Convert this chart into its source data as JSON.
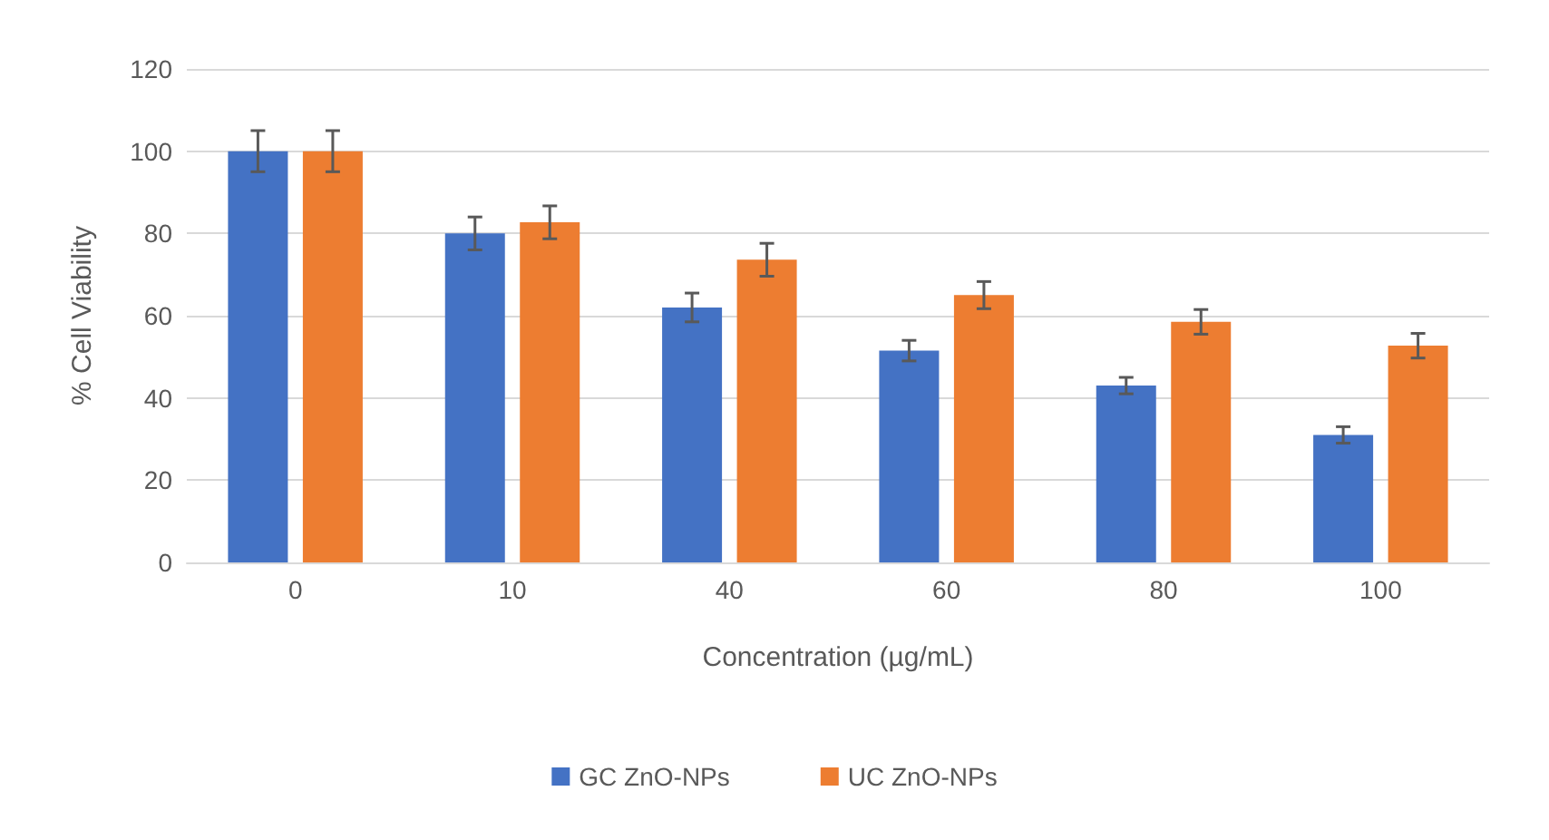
{
  "chart_data": {
    "type": "bar",
    "xlabel": "Concentration (µg/mL)",
    "ylabel": "% Cell Viability",
    "categories": [
      "0",
      "10",
      "40",
      "60",
      "80",
      "100"
    ],
    "series": [
      {
        "name": "GC ZnO-NPs",
        "color": "#4472c4",
        "values": [
          100,
          80,
          62,
          51.5,
          43,
          31
        ],
        "errors": [
          5,
          4,
          3.5,
          2.5,
          2,
          2
        ]
      },
      {
        "name": "UC ZnO-NPs",
        "color": "#ed7d31",
        "values": [
          100,
          82.7,
          73.6,
          65,
          58.5,
          52.7
        ],
        "errors": [
          5,
          4,
          4,
          3.3,
          3,
          3
        ]
      }
    ],
    "ylim": [
      0,
      120
    ],
    "yticks": [
      0,
      20,
      40,
      60,
      80,
      100,
      120
    ],
    "grid": "y",
    "legend": "bottom"
  }
}
